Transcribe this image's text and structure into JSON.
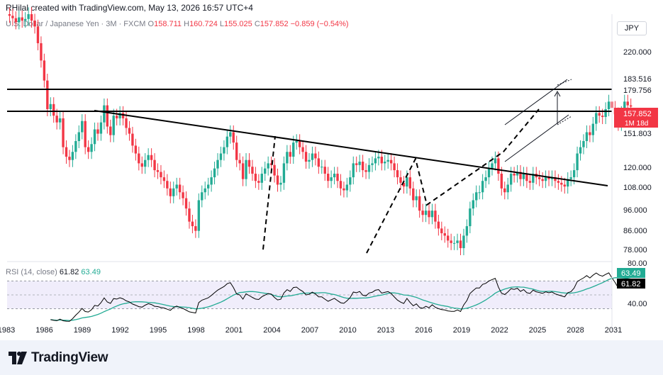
{
  "header": {
    "attribution": "RHilal created with TradingView.com, May 13, 2026 16:57 UTC+4"
  },
  "legend": {
    "symbol": "U.S. Dollar / Japanese Yen · 3M · FXCM",
    "open_label": "O",
    "open": "158.711",
    "high_label": "H",
    "high": "160.724",
    "low_label": "L",
    "low": "155.025",
    "close_label": "C",
    "close": "157.852",
    "change": "−0.859 (−0.54%)"
  },
  "currency_button": "JPY",
  "price_axis": {
    "ticks": [
      "220.000",
      "183.516",
      "179.756",
      "151.803",
      "120.000",
      "108.000",
      "96.000",
      "86.000",
      "78.000"
    ],
    "current_price": "157.852",
    "countdown": "1M 18d"
  },
  "time_axis": {
    "ticks": [
      "1983",
      "1986",
      "1989",
      "1992",
      "1995",
      "1998",
      "2001",
      "2004",
      "2007",
      "2010",
      "2013",
      "2016",
      "2019",
      "2022",
      "2025",
      "2028",
      "2031"
    ]
  },
  "rsi": {
    "title": "RSI (14, close)",
    "rsi_value": "61.82",
    "ma_value": "63.49",
    "axis_ticks": [
      "80.00",
      "40.00"
    ],
    "rsi_badge": "61.82",
    "ma_badge": "63.49"
  },
  "footer": {
    "brand": "TradingView"
  },
  "colors": {
    "up": "#22ab94",
    "down": "#f23645",
    "rsi_line": "#000000",
    "rsi_ma": "#22ab94",
    "rsi_band": "#f0edfb"
  },
  "chart_data": {
    "type": "candlestick",
    "title": "U.S. Dollar / Japanese Yen · 3M · FXCM",
    "y_scale": "log",
    "ylim": [
      73,
      250
    ],
    "xlim": [
      1983,
      2031
    ],
    "quarters_per_step": 1,
    "start_year": 1983,
    "closes": [
      250,
      248,
      245,
      240,
      246,
      242,
      244,
      250,
      242,
      235,
      216,
      198,
      179,
      155,
      159,
      150,
      145,
      148,
      128,
      122,
      120,
      125,
      132,
      138,
      146,
      128,
      125,
      130,
      140,
      137,
      145,
      158,
      142,
      136,
      150,
      148,
      152,
      148,
      141,
      137,
      129,
      124,
      118,
      116,
      120,
      123,
      120,
      114,
      113,
      110,
      108,
      104,
      100,
      104,
      106,
      102,
      99,
      94,
      88,
      86,
      84,
      98,
      102,
      104,
      106,
      110,
      115,
      120,
      124,
      128,
      135,
      138,
      131,
      120,
      118,
      109,
      120,
      116,
      112,
      108,
      107,
      112,
      115,
      118,
      117,
      111,
      106,
      107,
      118,
      125,
      122,
      131,
      132,
      128,
      125,
      119,
      120,
      124,
      121,
      116,
      116,
      112,
      108,
      110,
      112,
      108,
      104,
      103,
      106,
      110,
      118,
      117,
      119,
      114,
      113,
      117,
      118,
      121,
      122,
      118,
      119,
      120,
      118,
      114,
      110,
      107,
      105,
      110,
      104,
      98,
      100,
      93,
      91,
      93,
      90,
      93,
      88,
      85,
      83,
      82,
      80,
      79,
      79,
      80,
      77,
      82,
      86,
      94,
      98,
      102,
      102,
      108,
      110,
      115,
      118,
      121,
      112,
      104,
      102,
      106,
      112,
      111,
      113,
      109,
      112,
      108,
      107,
      112,
      110,
      109,
      108,
      110,
      109,
      110,
      108,
      107,
      106,
      105,
      109,
      110,
      114,
      124,
      128,
      132,
      138,
      136,
      144,
      152,
      150,
      149,
      155,
      161,
      156,
      151,
      144,
      152,
      161,
      158,
      157
    ],
    "annotations": [
      "horizontal resistance 183.516",
      "horizontal support 151.803",
      "descending trendline 1990-2030",
      "rising channel 2023-2026"
    ]
  }
}
